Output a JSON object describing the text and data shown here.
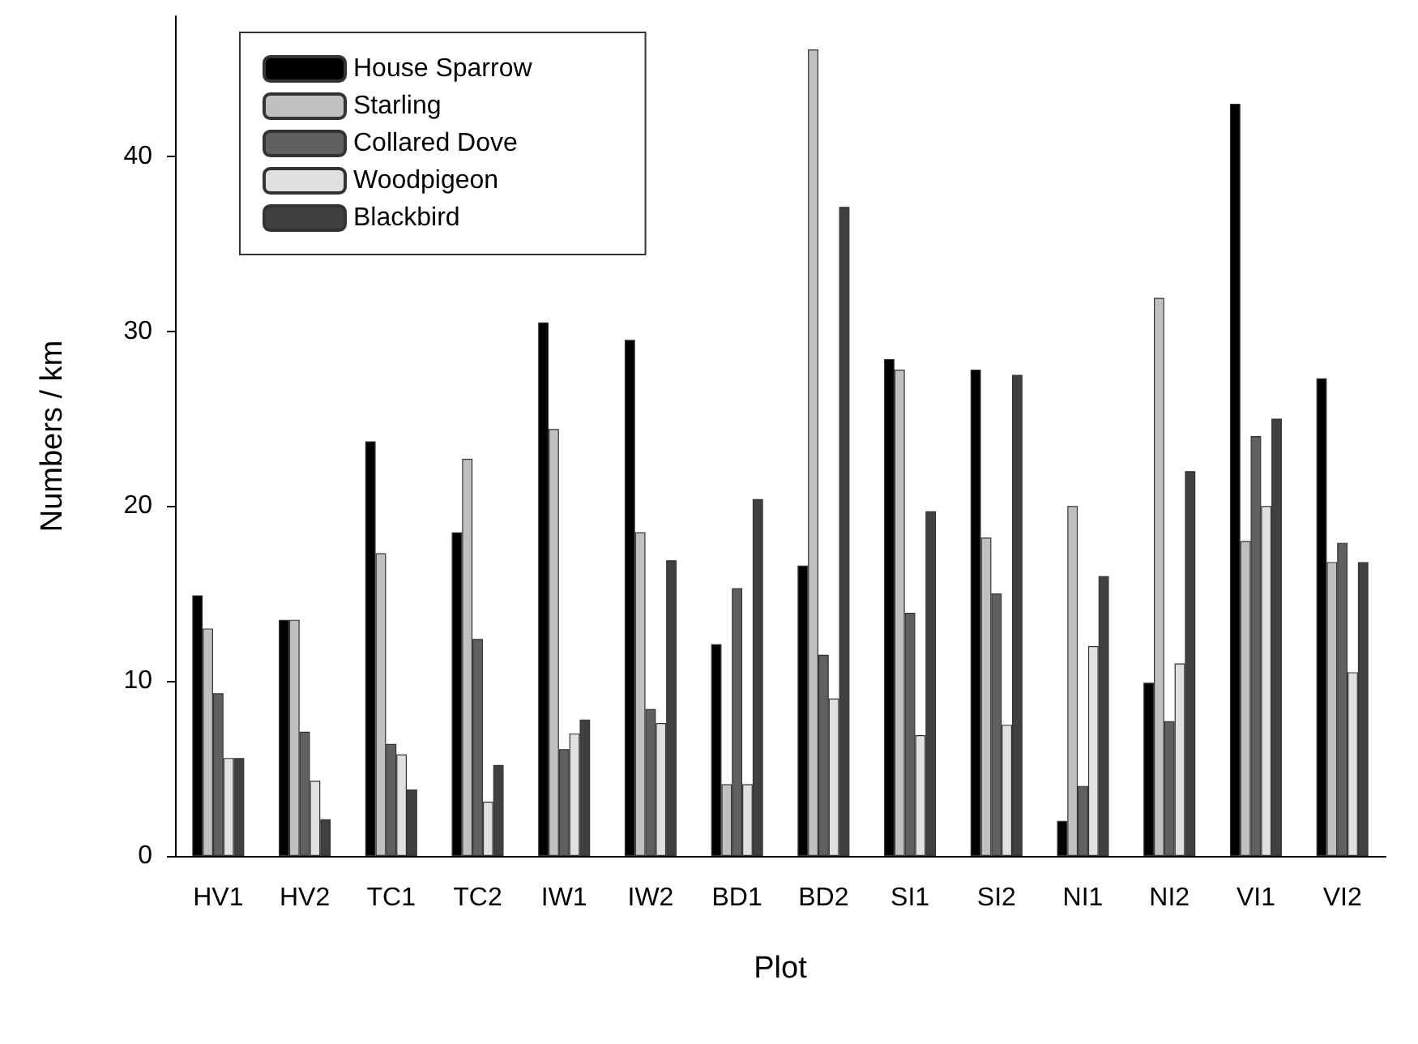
{
  "chart_data": {
    "type": "bar",
    "xlabel": "Plot",
    "ylabel": "Numbers / km",
    "categories": [
      "HV1",
      "HV2",
      "TC1",
      "TC2",
      "IW1",
      "IW2",
      "BD1",
      "BD2",
      "SI1",
      "SI2",
      "NI1",
      "NI2",
      "VI1",
      "VI2"
    ],
    "series": [
      {
        "name": "House Sparrow",
        "color": "#000000",
        "values": [
          14.9,
          13.5,
          23.7,
          18.5,
          30.5,
          29.5,
          12.1,
          16.6,
          28.4,
          27.8,
          2.0,
          9.9,
          43.0,
          27.3
        ]
      },
      {
        "name": "Starling",
        "color": "#c0c0c0",
        "values": [
          13.0,
          13.5,
          17.3,
          22.7,
          24.4,
          18.5,
          4.1,
          46.1,
          27.8,
          18.2,
          20.0,
          31.9,
          18.0,
          16.8
        ]
      },
      {
        "name": "Collared Dove",
        "color": "#606060",
        "values": [
          9.3,
          7.1,
          6.4,
          12.4,
          6.1,
          8.4,
          15.3,
          11.5,
          13.9,
          15.0,
          4.0,
          7.7,
          24.0,
          17.9
        ]
      },
      {
        "name": "Woodpigeon",
        "color": "#e0e0e0",
        "values": [
          5.6,
          4.3,
          5.8,
          3.1,
          7.0,
          7.6,
          4.1,
          9.0,
          6.9,
          7.5,
          12.0,
          11.0,
          20.0,
          10.5
        ]
      },
      {
        "name": "Blackbird",
        "color": "#404040",
        "values": [
          5.6,
          2.1,
          3.8,
          5.2,
          7.8,
          16.9,
          20.4,
          37.1,
          19.7,
          27.5,
          16.0,
          22.0,
          25.0,
          16.8
        ]
      }
    ],
    "ylim": [
      0,
      48
    ],
    "yticks": [
      0,
      10,
      20,
      30,
      40
    ],
    "grid": false,
    "legend": "top left"
  }
}
